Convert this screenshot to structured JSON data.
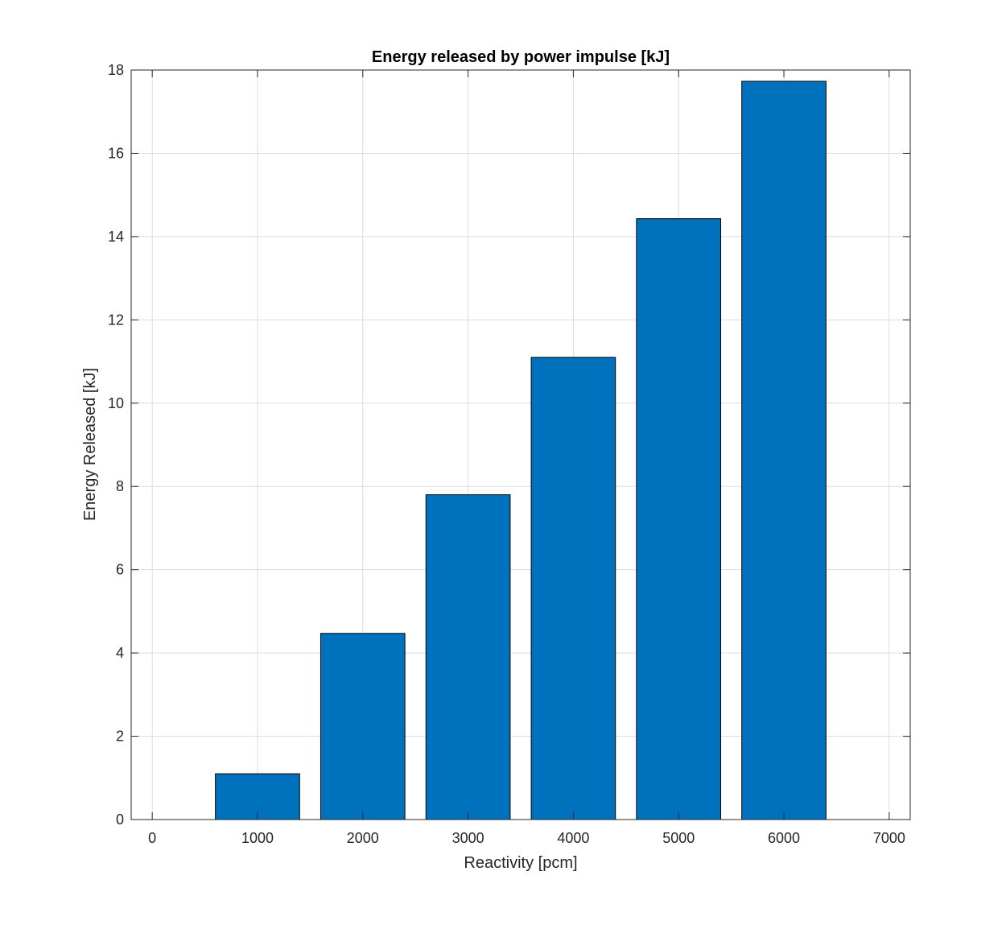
{
  "chart_data": {
    "type": "bar",
    "title": "Energy released by power impulse [kJ]",
    "xlabel": "Reactivity [pcm]",
    "ylabel": "Energy Released [kJ]",
    "x": [
      1000,
      2000,
      3000,
      4000,
      5000,
      6000
    ],
    "values": [
      1.1,
      4.47,
      7.8,
      11.1,
      14.43,
      17.73
    ],
    "bar_width": 800,
    "xlim": [
      -200,
      7200
    ],
    "ylim": [
      0,
      18
    ],
    "xticks": [
      0,
      1000,
      2000,
      3000,
      4000,
      5000,
      6000,
      7000
    ],
    "yticks": [
      0,
      2,
      4,
      6,
      8,
      10,
      12,
      14,
      16,
      18
    ],
    "grid": true,
    "legend": "none",
    "colors": {
      "bar_fill": "#0072BD",
      "bar_edge": "#000000",
      "grid": "#dcdcdc",
      "axis": "#262626"
    }
  }
}
